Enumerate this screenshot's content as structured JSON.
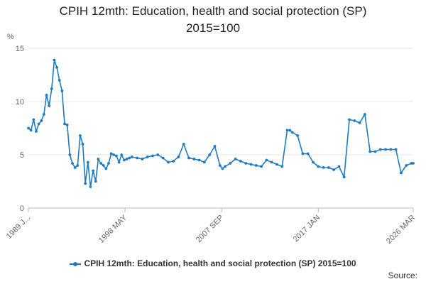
{
  "chart_data": {
    "type": "line",
    "title_line1": "CPIH 12mth: Education, health and social protection (SP)",
    "title_line2": "2015=100",
    "ylabel": "%",
    "ylim": [
      0,
      15
    ],
    "yticks": [
      0,
      5,
      10,
      15
    ],
    "x_tick_labels": [
      "1989 J...",
      "1998 MAY",
      "2007 SEP",
      "2017 JAN",
      "2026 MAR"
    ],
    "x_tick_positions": [
      1989.0,
      1998.33,
      2007.67,
      2017.0,
      2026.17
    ],
    "xlim": [
      1989.0,
      2026.17
    ],
    "grid": true,
    "legend_position": "bottom",
    "series": [
      {
        "name": "CPIH 12mth: Education, health and social protection (SP) 2015=100",
        "color": "#1f7bbf",
        "x": [
          1989.0,
          1989.25,
          1989.5,
          1989.75,
          1990.0,
          1990.25,
          1990.5,
          1990.75,
          1991.0,
          1991.25,
          1991.5,
          1991.75,
          1992.0,
          1992.25,
          1992.5,
          1992.75,
          1993.0,
          1993.25,
          1993.5,
          1993.75,
          1994.0,
          1994.25,
          1994.5,
          1994.75,
          1995.0,
          1995.25,
          1995.5,
          1995.75,
          1996.0,
          1996.25,
          1996.5,
          1996.75,
          1997.0,
          1997.25,
          1997.5,
          1997.75,
          1998.0,
          1998.25,
          1998.5,
          1998.75,
          1999.0,
          1999.5,
          2000.0,
          2000.5,
          2001.0,
          2001.5,
          2002.0,
          2002.5,
          2003.0,
          2003.5,
          2004.0,
          2004.5,
          2005.0,
          2005.5,
          2006.0,
          2006.5,
          2007.0,
          2007.5,
          2007.75,
          2008.0,
          2008.5,
          2009.0,
          2009.5,
          2010.0,
          2010.5,
          2011.0,
          2011.5,
          2012.0,
          2012.5,
          2013.0,
          2013.5,
          2014.0,
          2014.25,
          2014.5,
          2015.0,
          2015.5,
          2016.0,
          2016.5,
          2017.0,
          2017.5,
          2018.0,
          2018.5,
          2019.0,
          2019.5,
          2020.0,
          2020.5,
          2021.0,
          2021.5,
          2022.0,
          2022.5,
          2023.0,
          2023.5,
          2024.0,
          2024.5,
          2025.0,
          2025.5,
          2026.0,
          2026.17
        ],
        "values": [
          7.5,
          7.3,
          8.3,
          7.2,
          7.9,
          8.2,
          8.8,
          10.6,
          9.6,
          11.2,
          13.9,
          13.2,
          12.0,
          11.0,
          7.9,
          7.8,
          5.0,
          4.2,
          3.8,
          4.0,
          6.8,
          6.0,
          2.3,
          4.3,
          2.0,
          3.5,
          2.5,
          4.6,
          4.2,
          4.0,
          3.7,
          4.2,
          5.1,
          5.0,
          4.9,
          4.3,
          5.0,
          4.5,
          4.6,
          4.7,
          4.8,
          4.7,
          4.6,
          4.8,
          4.9,
          5.0,
          4.7,
          4.3,
          4.4,
          4.8,
          6.0,
          4.7,
          4.6,
          4.5,
          4.3,
          5.0,
          5.8,
          4.0,
          3.7,
          3.9,
          4.2,
          4.6,
          4.4,
          4.2,
          4.1,
          4.0,
          3.9,
          4.5,
          4.3,
          4.1,
          3.9,
          7.3,
          7.3,
          7.1,
          6.8,
          5.1,
          5.1,
          4.3,
          3.9,
          3.8,
          3.8,
          3.6,
          3.9,
          2.9,
          8.3,
          8.2,
          8.0,
          8.8,
          5.3,
          5.3,
          5.5,
          5.5,
          5.5,
          5.5,
          3.3,
          4.0,
          4.2,
          4.2
        ]
      }
    ]
  },
  "legend": {
    "label": "CPIH 12mth: Education, health and social protection (SP) 2015=100"
  },
  "source": {
    "label": "Source:"
  }
}
